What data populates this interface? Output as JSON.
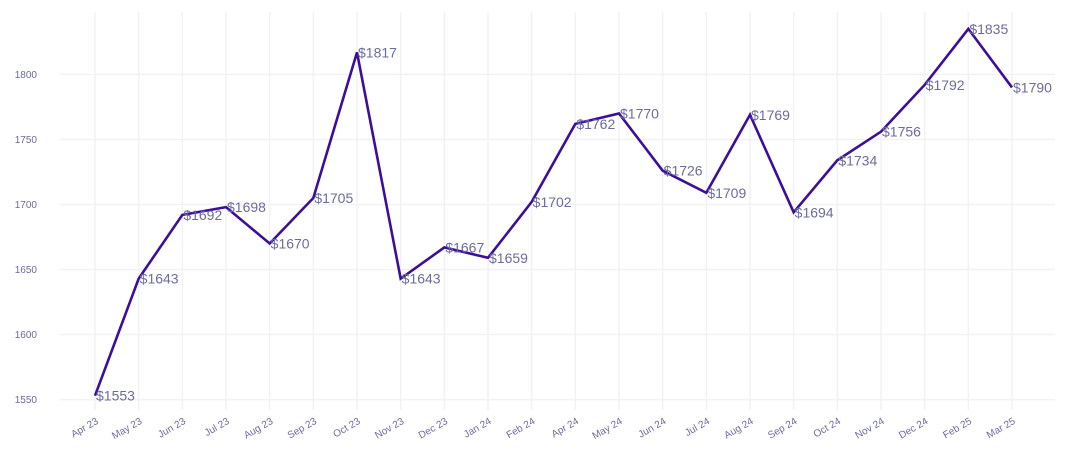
{
  "chart_data": {
    "type": "line",
    "title": "",
    "xlabel": "",
    "ylabel": "",
    "x": [
      "Apr 23",
      "May 23",
      "Jun 23",
      "Jul 23",
      "Aug 23",
      "Sep 23",
      "Oct 23",
      "Nov 23",
      "Dec 23",
      "Jan 24",
      "Feb 24",
      "Apr 24",
      "May 24",
      "Jun 24",
      "Jul 24",
      "Aug 24",
      "Sep 24",
      "Oct 24",
      "Nov 24",
      "Dec 24",
      "Feb 25",
      "Mar 25"
    ],
    "values": [
      1553,
      1643,
      1692,
      1698,
      1670,
      1705,
      1817,
      1643,
      1667,
      1659,
      1702,
      1762,
      1770,
      1726,
      1709,
      1769,
      1694,
      1734,
      1756,
      1792,
      1835,
      1790
    ],
    "data_labels": [
      "$1553",
      "$1643",
      "$1692",
      "$1698",
      "$1670",
      "$1705",
      "$1817",
      "$1643",
      "$1667",
      "$1659",
      "$1702",
      "$1762",
      "$1770",
      "$1726",
      "$1709",
      "$1769",
      "$1694",
      "$1734",
      "$1756",
      "$1792",
      "$1835",
      "$1790"
    ],
    "y_ticks": [
      1550,
      1600,
      1650,
      1700,
      1750,
      1800
    ],
    "ylim": [
      1542,
      1848
    ],
    "grid": true,
    "legend": "none",
    "line_color": "#3d0f99",
    "label_color": "#6b6b9e"
  }
}
